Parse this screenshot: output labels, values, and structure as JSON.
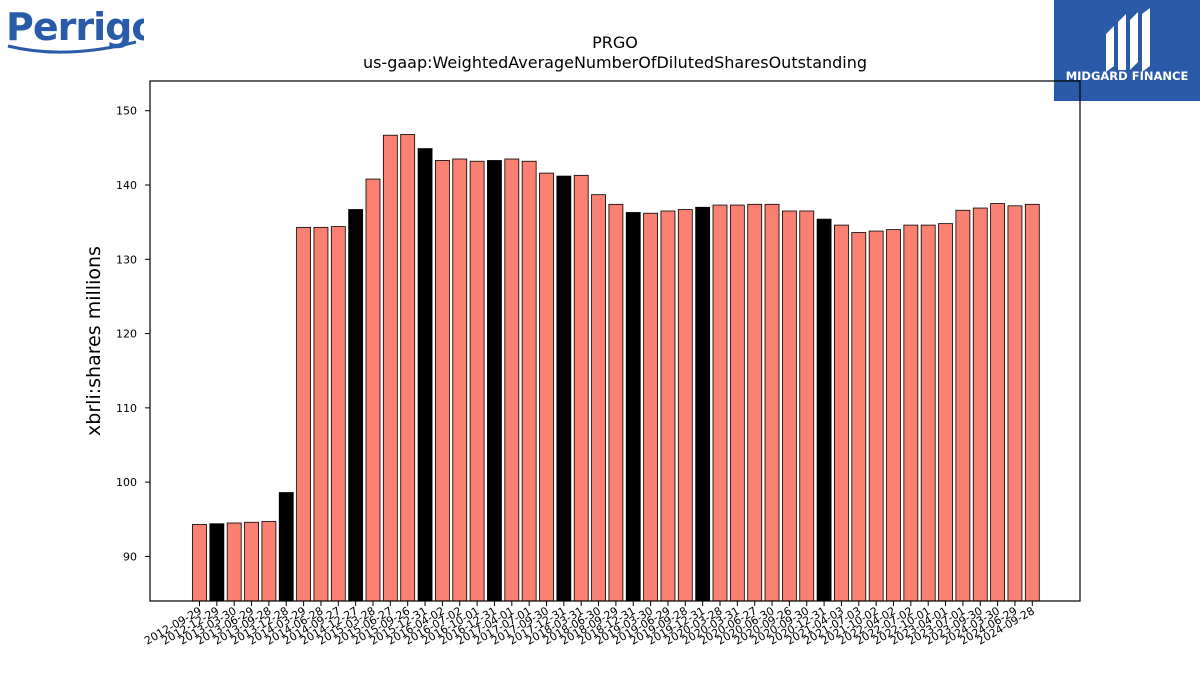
{
  "brand": {
    "left_logo_text": "Perrigo",
    "right_logo_text": "MIDGARD FINANCE",
    "left_logo_color": "#2a5ba8",
    "right_logo_bg": "#2b5aa8"
  },
  "chart_data": {
    "type": "bar",
    "title": "PRGO",
    "subtitle": "us-gaap:WeightedAverageNumberOfDilutedSharesOutstanding",
    "xlabel": "",
    "ylabel": "xbrli:shares millions",
    "ylim": [
      84,
      154
    ],
    "yticks": [
      90,
      100,
      110,
      120,
      130,
      140,
      150
    ],
    "grid": false,
    "colors": {
      "regular": "#fa8072",
      "highlight": "#000000",
      "edge": "#000000"
    },
    "categories": [
      "2012-09-29",
      "2012-12-29",
      "2013-03-30",
      "2013-06-29",
      "2013-09-28",
      "2013-12-28",
      "2014-03-29",
      "2014-06-28",
      "2014-09-27",
      "2014-12-27",
      "2015-03-28",
      "2015-06-27",
      "2015-09-26",
      "2015-12-31",
      "2016-04-02",
      "2016-07-02",
      "2016-10-01",
      "2016-12-31",
      "2017-04-01",
      "2017-07-01",
      "2017-09-30",
      "2017-12-31",
      "2018-03-31",
      "2018-06-30",
      "2018-09-29",
      "2018-12-31",
      "2019-03-30",
      "2019-06-29",
      "2019-09-28",
      "2019-12-31",
      "2020-03-28",
      "2020-03-31",
      "2020-06-27",
      "2020-06-30",
      "2020-09-26",
      "2020-09-30",
      "2020-12-31",
      "2021-04-03",
      "2021-07-03",
      "2021-10-02",
      "2022-04-02",
      "2022-07-02",
      "2022-10-01",
      "2023-04-01",
      "2023-07-01",
      "2023-09-30",
      "2024-03-30",
      "2024-06-29",
      "2024-09-28"
    ],
    "values": [
      94.3,
      94.4,
      94.5,
      94.6,
      94.7,
      98.6,
      134.3,
      134.3,
      134.4,
      136.7,
      140.8,
      146.7,
      146.8,
      144.9,
      143.3,
      143.5,
      143.2,
      143.3,
      143.5,
      143.2,
      141.6,
      141.2,
      141.3,
      138.7,
      137.4,
      136.3,
      136.2,
      136.5,
      136.7,
      137.0,
      137.3,
      137.3,
      137.4,
      137.4,
      136.5,
      136.5,
      135.4,
      134.6,
      133.6,
      133.8,
      134.0,
      134.6,
      134.6,
      134.8,
      136.6,
      136.9,
      137.5,
      137.2,
      137.4
    ],
    "highlighted": [
      false,
      true,
      false,
      false,
      false,
      true,
      false,
      false,
      false,
      true,
      false,
      false,
      false,
      true,
      false,
      false,
      false,
      true,
      false,
      false,
      false,
      true,
      false,
      false,
      false,
      true,
      false,
      false,
      false,
      true,
      false,
      false,
      false,
      false,
      false,
      false,
      true,
      false,
      false,
      false,
      false,
      false,
      false,
      false,
      false,
      false,
      false,
      false,
      false
    ]
  }
}
